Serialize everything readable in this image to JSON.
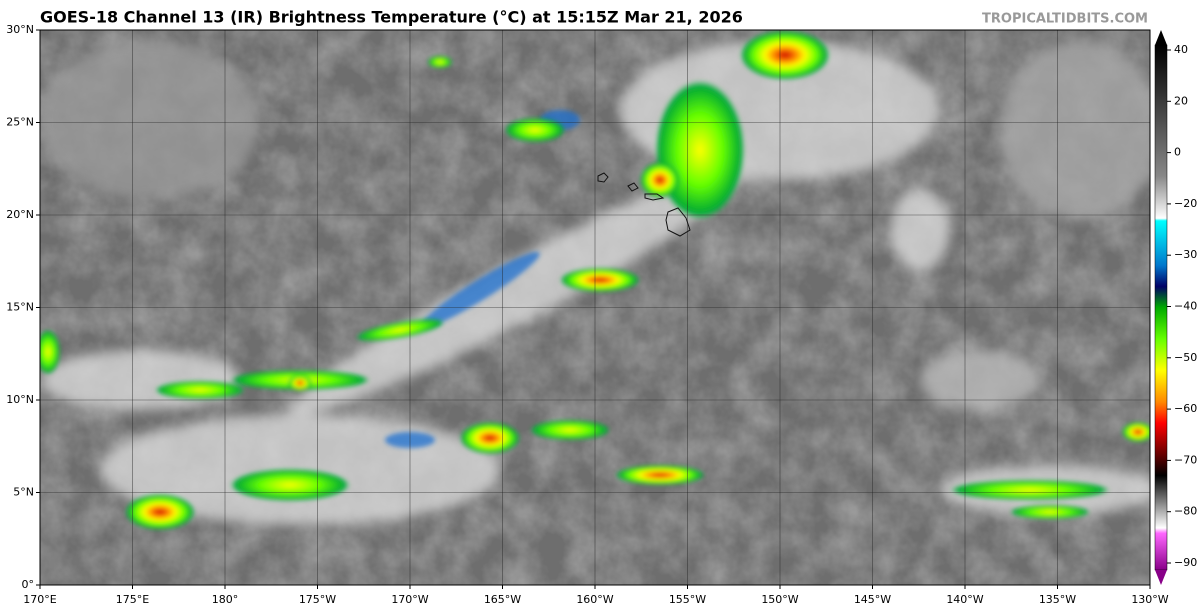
{
  "title": "GOES-18 Channel 13 (IR) Brightness Temperature (°C) at 15:15Z Mar 21, 2026",
  "credit": "TROPICALTIDBITS.COM",
  "map": {
    "lat_labels": [
      "0°",
      "5°N",
      "10°N",
      "15°N",
      "20°N",
      "25°N",
      "30°N"
    ],
    "lon_labels": [
      "170°E",
      "175°E",
      "180°",
      "175°W",
      "170°W",
      "165°W",
      "160°W",
      "155°W",
      "150°W",
      "145°W",
      "140°W",
      "135°W",
      "130°W"
    ]
  },
  "colorbar": {
    "labels": [
      "40",
      "20",
      "0",
      "−20",
      "−30",
      "−40",
      "−50",
      "−60",
      "−70",
      "−80",
      "−90"
    ]
  }
}
